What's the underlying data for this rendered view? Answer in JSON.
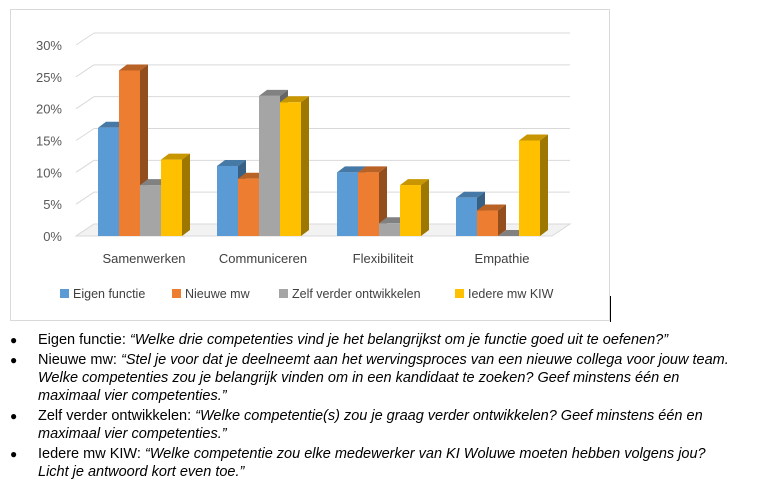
{
  "chart_data": {
    "type": "bar",
    "style": "3d-clustered",
    "categories": [
      "Samenwerken",
      "Communiceren",
      "Flexibiliteit",
      "Empathie"
    ],
    "series": [
      {
        "name": "Eigen functie",
        "color": "#5b9bd5",
        "values": [
          17,
          11,
          10,
          6
        ]
      },
      {
        "name": "Nieuwe mw",
        "color": "#ed7d31",
        "values": [
          26,
          9,
          10,
          4
        ]
      },
      {
        "name": "Zelf verder ontwikkelen",
        "color": "#a5a5a5",
        "values": [
          8,
          22,
          2,
          0
        ]
      },
      {
        "name": "Iedere mw KIW",
        "color": "#ffc000",
        "values": [
          12,
          21,
          8,
          15
        ]
      }
    ],
    "y_ticks": [
      "0%",
      "5%",
      "10%",
      "15%",
      "20%",
      "25%",
      "30%"
    ],
    "ylim": [
      0,
      30
    ],
    "y_unit": "%",
    "legend_position": "bottom",
    "grid": false
  },
  "notes": [
    {
      "label": "Eigen functie:",
      "question": "“Welke drie competenties vind je het belangrijkst om je functie goed uit te oefenen?”"
    },
    {
      "label": "Nieuwe mw:",
      "question": "“Stel je voor dat je deelneemt aan het wervingsproces van een nieuwe collega voor jouw team. Welke competenties zou je belangrijk vinden om in een kandidaat te zoeken? Geef minstens één en maximaal vier competenties.”"
    },
    {
      "label": "Zelf verder ontwikkelen:",
      "question": "“Welke competentie(s) zou je graag verder ontwikkelen? Geef minstens één en maximaal vier competenties.”"
    },
    {
      "label": "Iedere mw KIW:",
      "question": "“Welke competentie zou elke medewerker van KI Woluwe moeten hebben volgens jou? Licht je antwoord kort even toe.”"
    }
  ]
}
